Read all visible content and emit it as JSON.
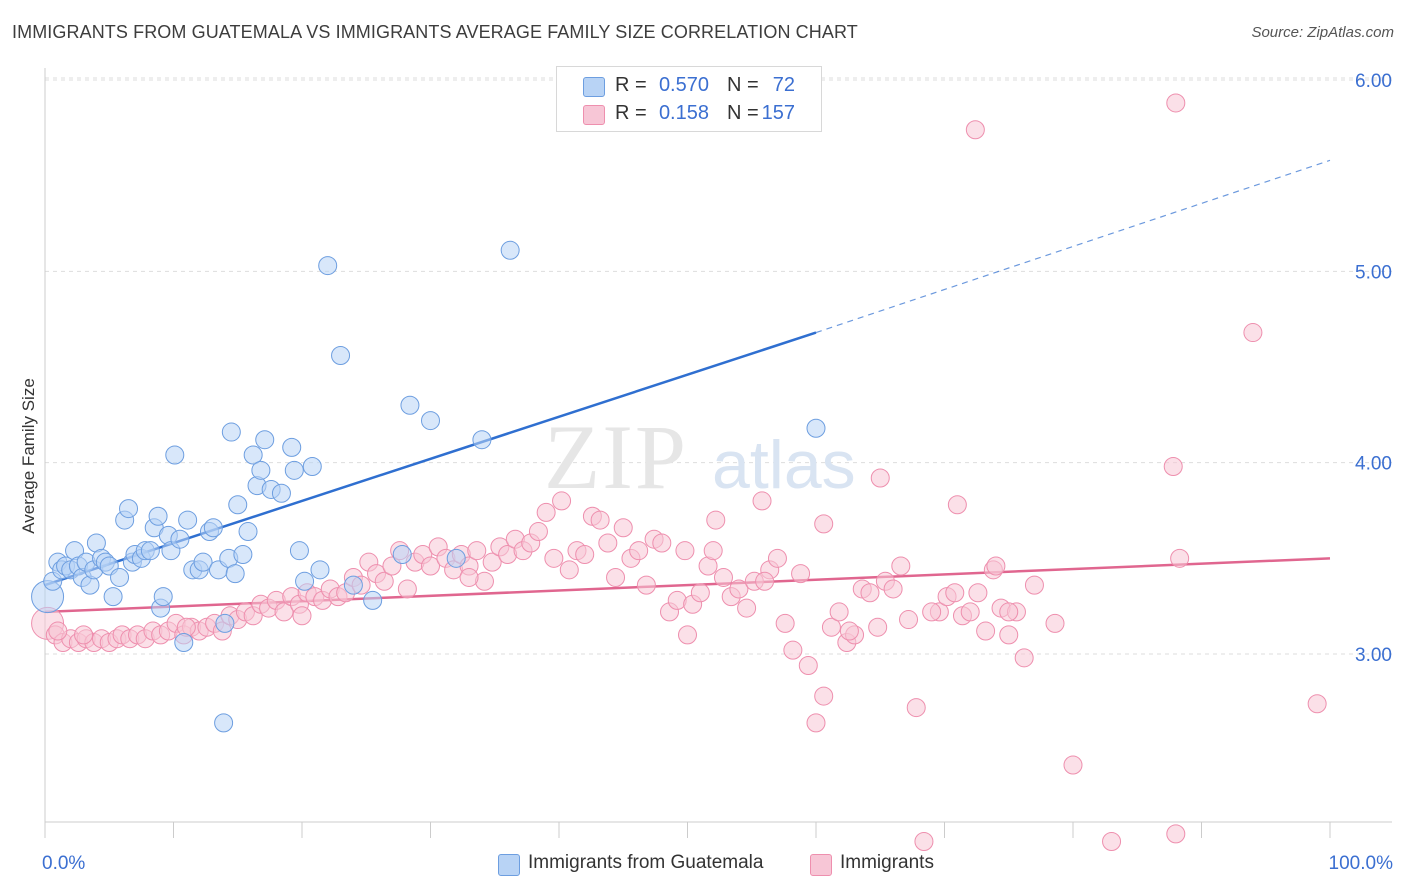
{
  "title": "IMMIGRANTS FROM GUATEMALA VS IMMIGRANTS AVERAGE FAMILY SIZE CORRELATION CHART",
  "source": "Source: ZipAtlas.com",
  "watermark": {
    "zip": "ZIP",
    "atlas": "atlas"
  },
  "colors": {
    "blue_fill": "#b8d3f5",
    "blue_stroke": "#6d9ee0",
    "blue_line": "#2f6fd0",
    "pink_fill": "#f7c6d6",
    "pink_stroke": "#ee8fae",
    "pink_line": "#e0668f",
    "grid": "#dddddd",
    "axis_text": "#3b6fd1"
  },
  "legend_top": [
    {
      "r_label": "R =",
      "r_value": "0.570",
      "n_label": "N =",
      "n_value": "72"
    },
    {
      "r_label": "R =",
      "r_value": "0.158",
      "n_label": "N =",
      "n_value": "157"
    }
  ],
  "legend_bottom": [
    {
      "label": "Immigrants from Guatemala"
    },
    {
      "label": "Immigrants"
    }
  ],
  "chart_data": {
    "type": "scatter",
    "title": "IMMIGRANTS FROM GUATEMALA VS IMMIGRANTS AVERAGE FAMILY SIZE CORRELATION CHART",
    "xlabel": "",
    "ylabel": "Average Family Size",
    "x_tick_labels": [
      "0.0%",
      "100.0%"
    ],
    "y_tick_labels": [
      "3.00",
      "4.00",
      "5.00",
      "6.00"
    ],
    "y_ticks": [
      3.0,
      4.0,
      5.0,
      6.0
    ],
    "xlim": [
      0,
      100
    ],
    "ylim": [
      2.0,
      6.1
    ],
    "grid": true,
    "legend_position": "bottom",
    "series": [
      {
        "name": "Immigrants from Guatemala",
        "R": 0.57,
        "N": 72,
        "trend": {
          "x0": 0,
          "y0": 3.36,
          "x1": 60,
          "y1": 4.68,
          "dashed_to_x": 100,
          "dashed_to_y": 5.58
        },
        "points": [
          [
            0.2,
            3.3,
            "l"
          ],
          [
            0.6,
            3.38,
            "s"
          ],
          [
            1.0,
            3.48,
            "s"
          ],
          [
            1.3,
            3.44,
            "s"
          ],
          [
            1.6,
            3.46,
            "s"
          ],
          [
            2.0,
            3.44,
            "s"
          ],
          [
            2.3,
            3.54,
            "s"
          ],
          [
            2.6,
            3.46,
            "s"
          ],
          [
            2.9,
            3.4,
            "s"
          ],
          [
            3.2,
            3.48,
            "s"
          ],
          [
            3.5,
            3.36,
            "s"
          ],
          [
            3.8,
            3.44,
            "s"
          ],
          [
            4.0,
            3.58,
            "s"
          ],
          [
            4.4,
            3.5,
            "s"
          ],
          [
            4.7,
            3.48,
            "s"
          ],
          [
            5.0,
            3.46,
            "s"
          ],
          [
            5.3,
            3.3,
            "s"
          ],
          [
            5.8,
            3.4,
            "s"
          ],
          [
            6.2,
            3.7,
            "s"
          ],
          [
            6.5,
            3.76,
            "s"
          ],
          [
            6.8,
            3.48,
            "s"
          ],
          [
            7.0,
            3.52,
            "s"
          ],
          [
            7.5,
            3.5,
            "s"
          ],
          [
            7.8,
            3.54,
            "s"
          ],
          [
            8.2,
            3.54,
            "s"
          ],
          [
            8.5,
            3.66,
            "s"
          ],
          [
            8.8,
            3.72,
            "s"
          ],
          [
            9.0,
            3.24,
            "s"
          ],
          [
            9.2,
            3.3,
            "s"
          ],
          [
            9.6,
            3.62,
            "s"
          ],
          [
            9.8,
            3.54,
            "s"
          ],
          [
            10.1,
            4.04,
            "s"
          ],
          [
            10.5,
            3.6,
            "s"
          ],
          [
            10.8,
            3.06,
            "s"
          ],
          [
            11.1,
            3.7,
            "s"
          ],
          [
            11.5,
            3.44,
            "s"
          ],
          [
            12.0,
            3.44,
            "s"
          ],
          [
            12.3,
            3.48,
            "s"
          ],
          [
            12.8,
            3.64,
            "s"
          ],
          [
            13.1,
            3.66,
            "s"
          ],
          [
            13.5,
            3.44,
            "s"
          ],
          [
            13.9,
            2.64,
            "s"
          ],
          [
            14.3,
            3.5,
            "s"
          ],
          [
            14.8,
            3.42,
            "s"
          ],
          [
            14.5,
            4.16,
            "s"
          ],
          [
            15.0,
            3.78,
            "s"
          ],
          [
            15.4,
            3.52,
            "s"
          ],
          [
            15.8,
            3.64,
            "s"
          ],
          [
            16.2,
            4.04,
            "s"
          ],
          [
            16.5,
            3.88,
            "s"
          ],
          [
            16.8,
            3.96,
            "s"
          ],
          [
            17.1,
            4.12,
            "s"
          ],
          [
            17.6,
            3.86,
            "s"
          ],
          [
            18.4,
            3.84,
            "s"
          ],
          [
            19.2,
            4.08,
            "s"
          ],
          [
            19.4,
            3.96,
            "s"
          ],
          [
            19.8,
            3.54,
            "s"
          ],
          [
            20.2,
            3.38,
            "s"
          ],
          [
            20.8,
            3.98,
            "s"
          ],
          [
            21.4,
            3.44,
            "s"
          ],
          [
            22.0,
            5.03,
            "s"
          ],
          [
            23.0,
            4.56,
            "s"
          ],
          [
            24.0,
            3.36,
            "s"
          ],
          [
            25.5,
            3.28,
            "s"
          ],
          [
            27.8,
            3.52,
            "s"
          ],
          [
            28.4,
            4.3,
            "s"
          ],
          [
            30.0,
            4.22,
            "s"
          ],
          [
            32.0,
            3.5,
            "s"
          ],
          [
            34.0,
            4.12,
            "s"
          ],
          [
            36.2,
            5.11,
            "s"
          ],
          [
            60.0,
            4.18,
            "s"
          ],
          [
            14.0,
            3.16,
            "s"
          ]
        ]
      },
      {
        "name": "Immigrants",
        "R": 0.158,
        "N": 157,
        "trend": {
          "x0": 0,
          "y0": 3.22,
          "x1": 100,
          "y1": 3.5
        },
        "points": [
          [
            0.2,
            3.16,
            "l"
          ],
          [
            0.8,
            3.1,
            "s"
          ],
          [
            1.4,
            3.06,
            "s"
          ],
          [
            2.0,
            3.08,
            "s"
          ],
          [
            2.6,
            3.06,
            "s"
          ],
          [
            3.2,
            3.08,
            "s"
          ],
          [
            3.8,
            3.06,
            "s"
          ],
          [
            4.4,
            3.08,
            "s"
          ],
          [
            5.0,
            3.06,
            "s"
          ],
          [
            5.6,
            3.08,
            "s"
          ],
          [
            6.0,
            3.1,
            "s"
          ],
          [
            6.6,
            3.08,
            "s"
          ],
          [
            7.2,
            3.1,
            "s"
          ],
          [
            7.8,
            3.08,
            "s"
          ],
          [
            8.4,
            3.12,
            "s"
          ],
          [
            9.0,
            3.1,
            "s"
          ],
          [
            9.6,
            3.12,
            "s"
          ],
          [
            10.2,
            3.16,
            "s"
          ],
          [
            10.8,
            3.1,
            "s"
          ],
          [
            11.4,
            3.14,
            "s"
          ],
          [
            12.0,
            3.12,
            "s"
          ],
          [
            12.6,
            3.14,
            "s"
          ],
          [
            13.2,
            3.16,
            "s"
          ],
          [
            13.8,
            3.12,
            "s"
          ],
          [
            14.4,
            3.2,
            "s"
          ],
          [
            15.0,
            3.18,
            "s"
          ],
          [
            15.6,
            3.22,
            "s"
          ],
          [
            16.2,
            3.2,
            "s"
          ],
          [
            16.8,
            3.26,
            "s"
          ],
          [
            17.4,
            3.24,
            "s"
          ],
          [
            18.0,
            3.28,
            "s"
          ],
          [
            18.6,
            3.22,
            "s"
          ],
          [
            19.2,
            3.3,
            "s"
          ],
          [
            19.8,
            3.26,
            "s"
          ],
          [
            20.4,
            3.32,
            "s"
          ],
          [
            21.0,
            3.3,
            "s"
          ],
          [
            21.6,
            3.28,
            "s"
          ],
          [
            22.2,
            3.34,
            "s"
          ],
          [
            22.8,
            3.3,
            "s"
          ],
          [
            23.4,
            3.32,
            "s"
          ],
          [
            24.0,
            3.4,
            "s"
          ],
          [
            24.6,
            3.36,
            "s"
          ],
          [
            25.2,
            3.48,
            "s"
          ],
          [
            25.8,
            3.42,
            "s"
          ],
          [
            26.4,
            3.38,
            "s"
          ],
          [
            27.0,
            3.46,
            "s"
          ],
          [
            27.6,
            3.54,
            "s"
          ],
          [
            28.2,
            3.34,
            "s"
          ],
          [
            28.8,
            3.48,
            "s"
          ],
          [
            29.4,
            3.52,
            "s"
          ],
          [
            30.0,
            3.46,
            "s"
          ],
          [
            30.6,
            3.56,
            "s"
          ],
          [
            31.2,
            3.5,
            "s"
          ],
          [
            31.8,
            3.44,
            "s"
          ],
          [
            32.4,
            3.52,
            "s"
          ],
          [
            33.0,
            3.46,
            "s"
          ],
          [
            33.6,
            3.54,
            "s"
          ],
          [
            34.2,
            3.38,
            "s"
          ],
          [
            34.8,
            3.48,
            "s"
          ],
          [
            35.4,
            3.56,
            "s"
          ],
          [
            36.0,
            3.52,
            "s"
          ],
          [
            36.6,
            3.6,
            "s"
          ],
          [
            37.2,
            3.54,
            "s"
          ],
          [
            37.8,
            3.58,
            "s"
          ],
          [
            38.4,
            3.64,
            "s"
          ],
          [
            39.0,
            3.74,
            "s"
          ],
          [
            39.6,
            3.5,
            "s"
          ],
          [
            40.2,
            3.8,
            "s"
          ],
          [
            40.8,
            3.44,
            "s"
          ],
          [
            41.4,
            3.54,
            "s"
          ],
          [
            42.0,
            3.52,
            "s"
          ],
          [
            42.6,
            3.72,
            "s"
          ],
          [
            43.2,
            3.7,
            "s"
          ],
          [
            43.8,
            3.58,
            "s"
          ],
          [
            44.4,
            3.4,
            "s"
          ],
          [
            45.0,
            3.66,
            "s"
          ],
          [
            45.6,
            3.5,
            "s"
          ],
          [
            46.2,
            3.54,
            "s"
          ],
          [
            46.8,
            3.36,
            "s"
          ],
          [
            47.4,
            3.6,
            "s"
          ],
          [
            48.0,
            3.58,
            "s"
          ],
          [
            48.6,
            3.22,
            "s"
          ],
          [
            49.2,
            3.28,
            "s"
          ],
          [
            49.8,
            3.54,
            "s"
          ],
          [
            50.4,
            3.26,
            "s"
          ],
          [
            51.0,
            3.32,
            "s"
          ],
          [
            51.6,
            3.46,
            "s"
          ],
          [
            52.2,
            3.7,
            "s"
          ],
          [
            52.8,
            3.4,
            "s"
          ],
          [
            53.4,
            3.3,
            "s"
          ],
          [
            54.0,
            3.34,
            "s"
          ],
          [
            54.6,
            3.24,
            "s"
          ],
          [
            55.2,
            3.38,
            "s"
          ],
          [
            55.8,
            3.8,
            "s"
          ],
          [
            56.4,
            3.44,
            "s"
          ],
          [
            57.0,
            3.5,
            "s"
          ],
          [
            57.6,
            3.16,
            "s"
          ],
          [
            58.2,
            3.02,
            "s"
          ],
          [
            58.8,
            3.42,
            "s"
          ],
          [
            59.4,
            2.94,
            "s"
          ],
          [
            60.0,
            2.64,
            "s"
          ],
          [
            60.6,
            2.78,
            "s"
          ],
          [
            61.2,
            3.14,
            "s"
          ],
          [
            61.8,
            3.22,
            "s"
          ],
          [
            62.4,
            3.06,
            "s"
          ],
          [
            63.0,
            3.1,
            "s"
          ],
          [
            63.6,
            3.34,
            "s"
          ],
          [
            64.2,
            3.32,
            "s"
          ],
          [
            64.8,
            3.14,
            "s"
          ],
          [
            65.4,
            3.38,
            "s"
          ],
          [
            66.0,
            3.34,
            "s"
          ],
          [
            66.6,
            3.46,
            "s"
          ],
          [
            67.2,
            3.18,
            "s"
          ],
          [
            67.8,
            2.72,
            "s"
          ],
          [
            68.4,
            2.02,
            "s"
          ],
          [
            69.6,
            3.22,
            "s"
          ],
          [
            70.2,
            3.3,
            "s"
          ],
          [
            70.8,
            3.32,
            "s"
          ],
          [
            71.4,
            3.2,
            "s"
          ],
          [
            72.0,
            3.22,
            "s"
          ],
          [
            72.6,
            3.32,
            "s"
          ],
          [
            73.2,
            3.12,
            "s"
          ],
          [
            73.8,
            3.44,
            "s"
          ],
          [
            74.4,
            3.24,
            "s"
          ],
          [
            75.0,
            3.1,
            "s"
          ],
          [
            75.6,
            3.22,
            "s"
          ],
          [
            76.2,
            2.98,
            "s"
          ],
          [
            78.6,
            3.16,
            "s"
          ],
          [
            80.0,
            2.42,
            "s"
          ],
          [
            83.0,
            2.02,
            "s"
          ],
          [
            88.0,
            2.06,
            "s"
          ],
          [
            50.0,
            3.1,
            "s"
          ],
          [
            52.0,
            3.54,
            "s"
          ],
          [
            56.0,
            3.38,
            "s"
          ],
          [
            60.6,
            3.68,
            "s"
          ],
          [
            62.6,
            3.12,
            "s"
          ],
          [
            65.0,
            3.92,
            "s"
          ],
          [
            69.0,
            3.22,
            "s"
          ],
          [
            71.0,
            3.78,
            "s"
          ],
          [
            74.0,
            3.46,
            "s"
          ],
          [
            75.0,
            3.22,
            "s"
          ],
          [
            77.0,
            3.36,
            "s"
          ],
          [
            88.0,
            5.88,
            "s"
          ],
          [
            72.4,
            5.74,
            "s"
          ],
          [
            88.3,
            3.5,
            "s"
          ],
          [
            99.0,
            2.74,
            "s"
          ],
          [
            94.0,
            4.68,
            "s"
          ],
          [
            87.8,
            3.98,
            "s"
          ],
          [
            1.0,
            3.12,
            "s"
          ],
          [
            3.0,
            3.1,
            "s"
          ],
          [
            11.0,
            3.14,
            "s"
          ],
          [
            20.0,
            3.2,
            "s"
          ],
          [
            33.0,
            3.4,
            "s"
          ]
        ]
      }
    ]
  }
}
